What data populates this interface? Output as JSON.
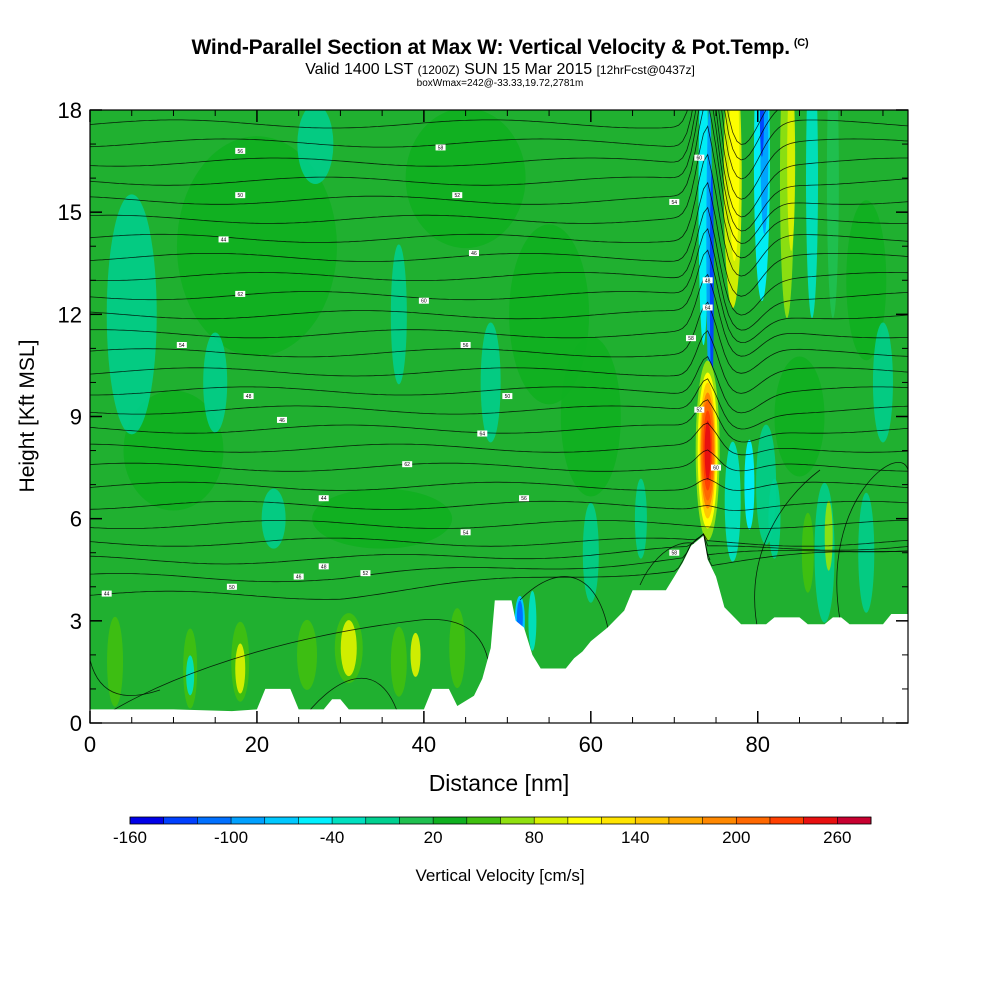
{
  "chart_data": {
    "type": "heatmap",
    "title": "Wind-Parallel Section at Max W: Vertical Velocity & Pot.Temp.",
    "title_suffix": "(C)",
    "subtitle_main": "Valid 1400 LST",
    "subtitle_utc": "(1200Z)",
    "subtitle_date": "SUN 15 Mar 2015",
    "subtitle_fcst": "[12hrFcst@0437z]",
    "subtitle2": "boxWmax=242@-33.33,19.72,2781m",
    "xlabel": "Distance [nm]",
    "ylabel": "Height [Kft MSL]",
    "xlim": [
      0,
      98
    ],
    "ylim": [
      0,
      18
    ],
    "xticks": [
      "0",
      "20",
      "40",
      "60",
      "80"
    ],
    "yticks": [
      "0",
      "3",
      "6",
      "9",
      "12",
      "15",
      "18"
    ],
    "colorbar": {
      "label": "Vertical Velocity [cm/s]",
      "tick_labels": [
        "-160",
        "-100",
        "-40",
        "20",
        "80",
        "140",
        "200",
        "260"
      ],
      "colors": [
        "#0000e8",
        "#0040ff",
        "#0070ff",
        "#00a0ff",
        "#00c8ff",
        "#00f0ff",
        "#00e0c0",
        "#00d090",
        "#20c050",
        "#10b020",
        "#40c010",
        "#90e010",
        "#d8f000",
        "#ffff00",
        "#ffe400",
        "#ffc800",
        "#ffa800",
        "#ff8800",
        "#ff6800",
        "#ff4000",
        "#e81010",
        "#c80030"
      ]
    },
    "terrain_profile_kft": [
      [
        0,
        0.4
      ],
      [
        10,
        0.4
      ],
      [
        17,
        0.35
      ],
      [
        20,
        0.4
      ],
      [
        21,
        1.0
      ],
      [
        24,
        1.0
      ],
      [
        25,
        0.4
      ],
      [
        28,
        0.4
      ],
      [
        29,
        0.7
      ],
      [
        30,
        0.7
      ],
      [
        31,
        0.4
      ],
      [
        40,
        0.4
      ],
      [
        41,
        1.0
      ],
      [
        43,
        1.0
      ],
      [
        44,
        0.5
      ],
      [
        46,
        0.8
      ],
      [
        47,
        1.3
      ],
      [
        48,
        2.2
      ],
      [
        48.5,
        3.6
      ],
      [
        50.5,
        3.6
      ],
      [
        51,
        3.0
      ],
      [
        52,
        2.8
      ],
      [
        53,
        2.0
      ],
      [
        54,
        1.6
      ],
      [
        57,
        1.6
      ],
      [
        58,
        1.9
      ],
      [
        59,
        2.1
      ],
      [
        60,
        2.4
      ],
      [
        62,
        2.8
      ],
      [
        64,
        3.3
      ],
      [
        65,
        3.9
      ],
      [
        69,
        3.9
      ],
      [
        70,
        4.3
      ],
      [
        71,
        4.7
      ],
      [
        72,
        5.2
      ],
      [
        73,
        5.4
      ],
      [
        73.5,
        5.5
      ],
      [
        74,
        4.8
      ],
      [
        75,
        4.3
      ],
      [
        76,
        3.4
      ],
      [
        78,
        2.9
      ],
      [
        81,
        2.9
      ],
      [
        82,
        3.1
      ],
      [
        85,
        3.1
      ],
      [
        86,
        2.9
      ],
      [
        88,
        2.9
      ],
      [
        89,
        3.1
      ],
      [
        90,
        3.1
      ],
      [
        91,
        2.9
      ],
      [
        95,
        2.9
      ],
      [
        96,
        3.2
      ],
      [
        98,
        3.2
      ]
    ],
    "updraft_maximum": {
      "distance_nm": 74,
      "height_kft": 8,
      "w_cm_s": 242
    },
    "theta_contour_labels": [
      "44",
      "46",
      "48",
      "50",
      "52",
      "54",
      "56",
      "58",
      "60",
      "62",
      "64"
    ]
  }
}
